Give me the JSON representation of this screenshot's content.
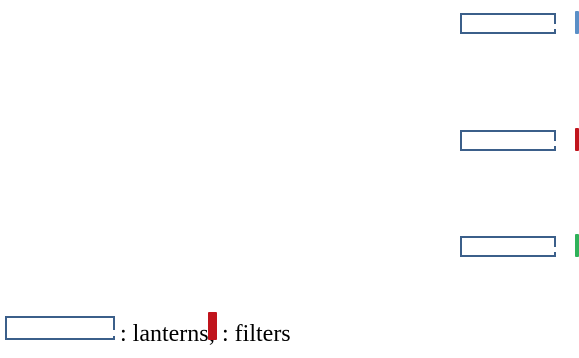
{
  "colors": {
    "lantern_border": "#3b5f8a",
    "filter_blue": "#5a8fc7",
    "filter_red": "#c0141c",
    "filter_green": "#2fb25a",
    "legend_filter": "#c0141c"
  },
  "rows": [
    {
      "lantern": "lantern",
      "filter_color": "blue"
    },
    {
      "lantern": "lantern",
      "filter_color": "red"
    },
    {
      "lantern": "lantern",
      "filter_color": "green"
    }
  ],
  "legend": {
    "lantern_label": ": lanterns;",
    "filter_label": ": filters"
  }
}
